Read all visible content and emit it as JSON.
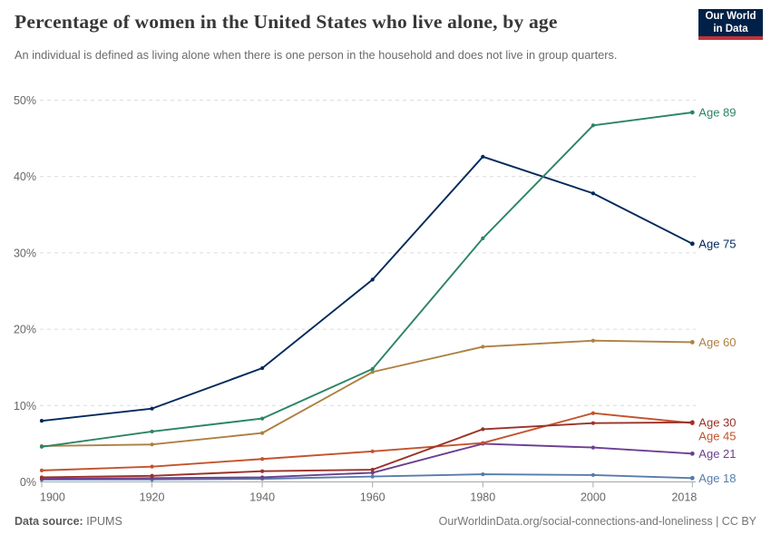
{
  "header": {
    "title": "Percentage of women in the United States who live alone, by age",
    "subtitle": "An individual is defined as living alone when there is one person in the household and does not live in group quarters.",
    "logo": {
      "line1": "Our World",
      "line2": "in Data",
      "bg": "#002147",
      "stripe": "#C0333B"
    }
  },
  "footer": {
    "datasource_label": "Data source:",
    "datasource_value": "IPUMS",
    "url_text": "OurWorldinData.org/social-connections-and-loneliness | CC BY"
  },
  "chart_data": {
    "type": "line",
    "x": [
      1900,
      1920,
      1940,
      1960,
      1980,
      2000,
      2018
    ],
    "x_tick_labels": [
      "1900",
      "1920",
      "1940",
      "1960",
      "1980",
      "2000",
      "2018"
    ],
    "y_ticks": [
      0,
      10,
      20,
      30,
      40,
      50
    ],
    "y_tick_suffix": "%",
    "ylim": [
      0,
      50
    ],
    "xlim": [
      1900,
      2018
    ],
    "grid": "horizontal-dashed",
    "legend_position": "right-of-line-end",
    "axis_color": "#a8a8a8",
    "grid_color": "#dcdcdc",
    "tick_label_color": "#666666",
    "series": [
      {
        "name": "Age 89",
        "color": "#2C8465",
        "values": [
          4.6,
          6.6,
          8.3,
          14.8,
          31.9,
          46.7,
          48.4
        ]
      },
      {
        "name": "Age 75",
        "color": "#00295B",
        "values": [
          8.0,
          9.6,
          14.9,
          26.5,
          42.6,
          37.8,
          31.2
        ]
      },
      {
        "name": "Age 60",
        "color": "#AE8042",
        "values": [
          4.7,
          4.9,
          6.4,
          14.4,
          17.7,
          18.5,
          18.3
        ]
      },
      {
        "name": "Age 30",
        "color": "#9A3129",
        "values": [
          0.6,
          0.8,
          1.4,
          1.6,
          6.9,
          7.7,
          7.8
        ]
      },
      {
        "name": "Age 45",
        "color": "#C4522B",
        "values": [
          1.5,
          2.0,
          3.0,
          4.0,
          5.1,
          9.0,
          7.7
        ]
      },
      {
        "name": "Age 21",
        "color": "#6D3E91",
        "values": [
          0.4,
          0.5,
          0.6,
          1.2,
          5.0,
          4.5,
          3.7
        ]
      },
      {
        "name": "Age 18",
        "color": "#577CA9",
        "values": [
          0.3,
          0.3,
          0.4,
          0.7,
          1.0,
          0.9,
          0.5
        ]
      }
    ]
  }
}
